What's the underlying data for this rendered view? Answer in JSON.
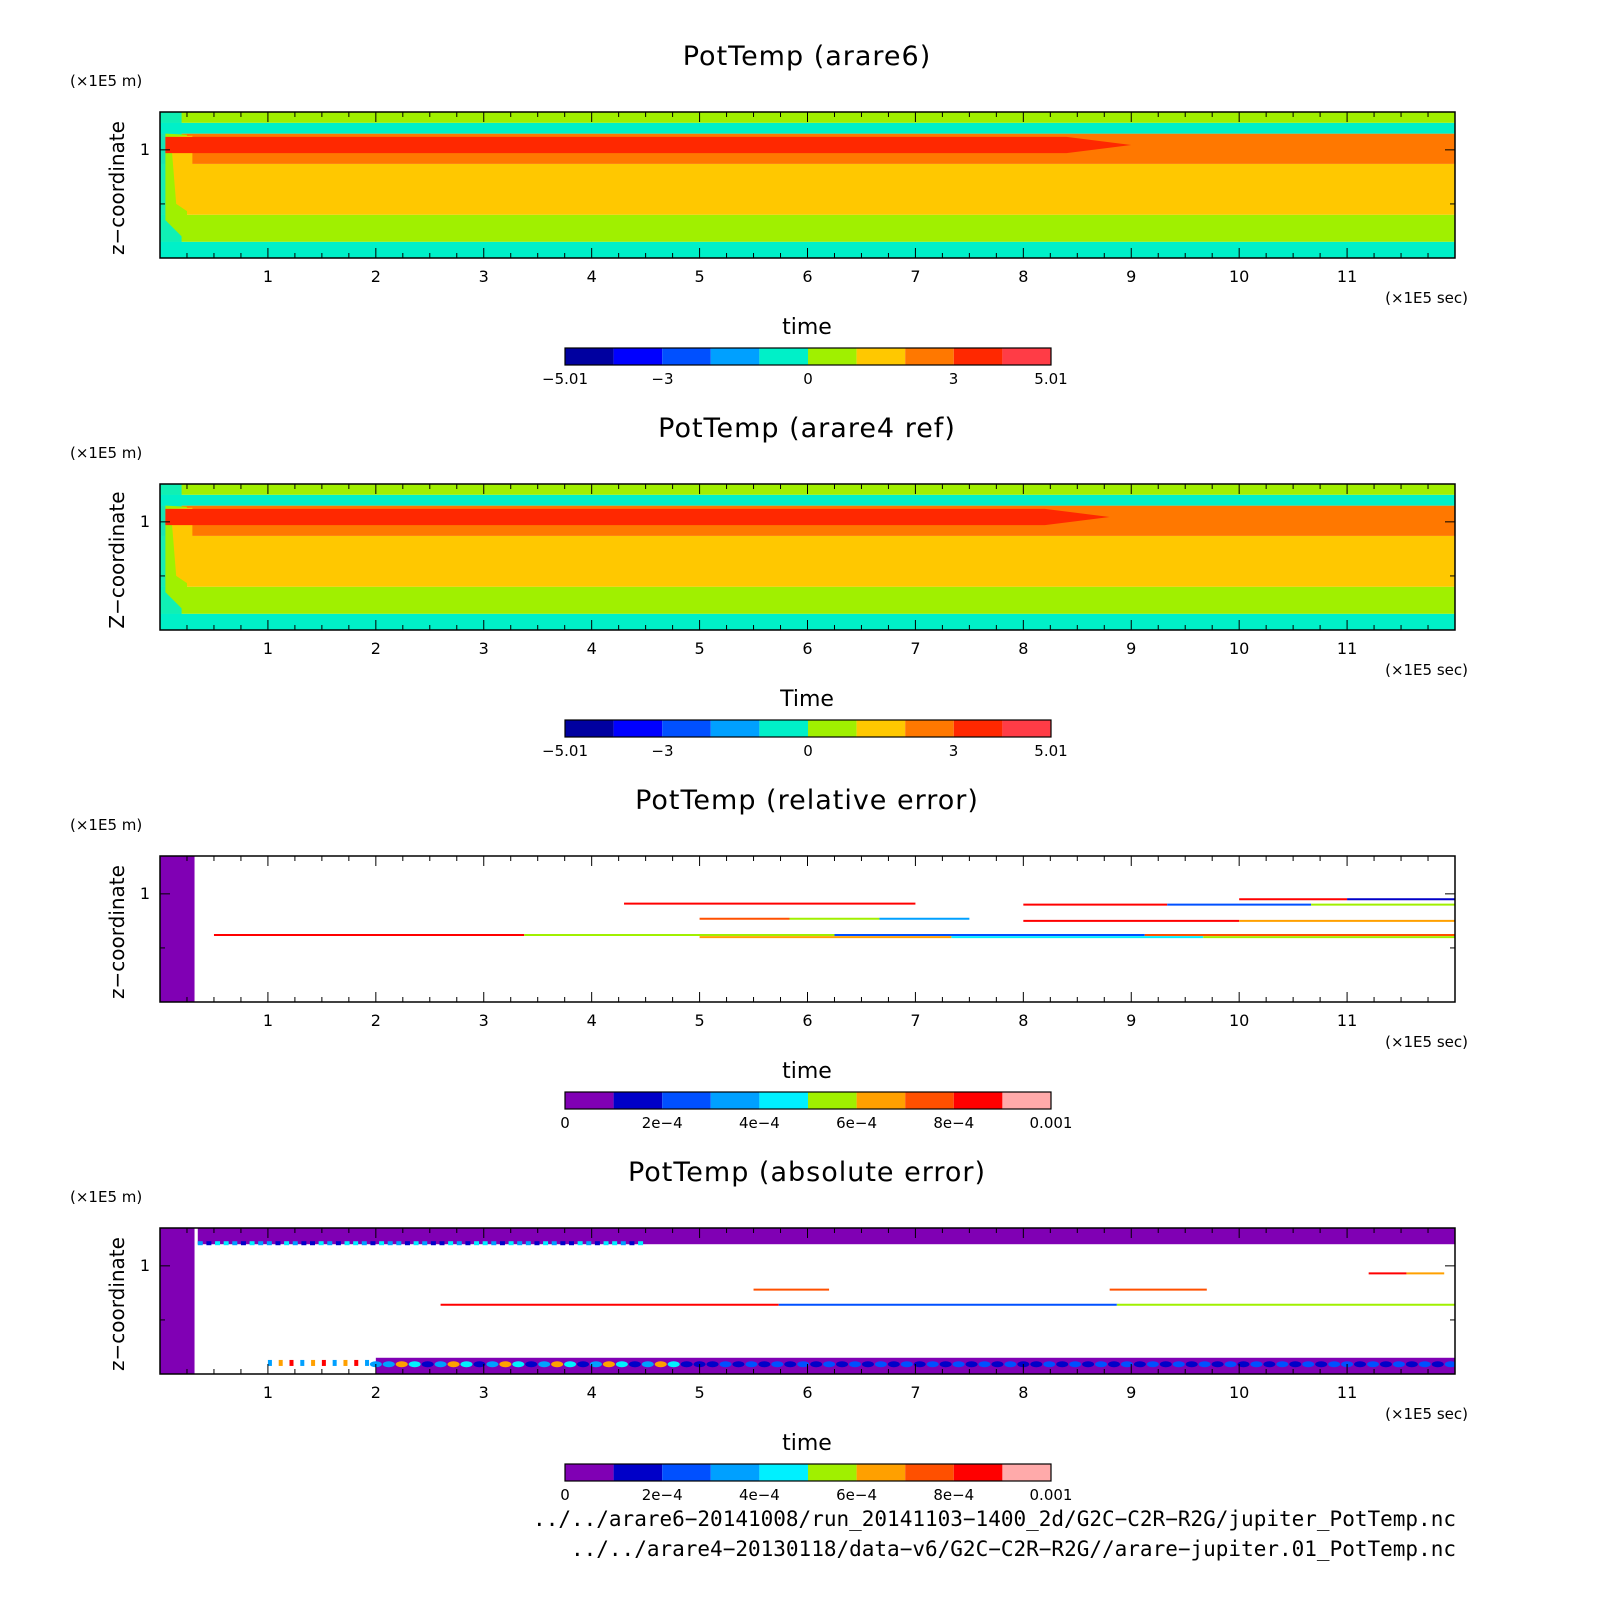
{
  "panels": [
    {
      "title": "PotTemp (arare6)",
      "y_unit": "(×1E5 m)",
      "ylabel": "z−coordinate",
      "xlabel": "time",
      "x_unit": "(×1E5 sec)",
      "colorbar_ticks": [
        "−5.01",
        "−3",
        "0",
        "3",
        "5.01"
      ]
    },
    {
      "title": "PotTemp (arare4 ref)",
      "y_unit": "(×1E5 m)",
      "ylabel": "Z−coordinate",
      "xlabel": "Time",
      "x_unit": "(×1E5 sec)",
      "colorbar_ticks": [
        "−5.01",
        "−3",
        "0",
        "3",
        "5.01"
      ]
    },
    {
      "title": "PotTemp (relative error)",
      "y_unit": "(×1E5 m)",
      "ylabel": "z−coordinate",
      "xlabel": "time",
      "x_unit": "(×1E5 sec)",
      "colorbar_ticks": [
        "0",
        "2e−4",
        "4e−4",
        "6e−4",
        "8e−4",
        "0.001"
      ]
    },
    {
      "title": "PotTemp (absolute error)",
      "y_unit": "(×1E5 m)",
      "ylabel": "z−coordinate",
      "xlabel": "time",
      "x_unit": "(×1E5 sec)",
      "colorbar_ticks": [
        "0",
        "2e−4",
        "4e−4",
        "6e−4",
        "8e−4",
        "0.001"
      ]
    }
  ],
  "footer": {
    "line1": "../../arare6−20141008/run_20141103−1400_2d/G2C−C2R−R2G/jupiter_PotTemp.nc",
    "line2": "../../arare4−20130118/data−v6/G2C−C2R−R2G//arare−jupiter.01_PotTemp.nc"
  },
  "chart_data": [
    {
      "type": "heatmap",
      "title": "PotTemp (arare6)",
      "xlabel": "time",
      "ylabel": "z−coordinate",
      "x_unit": "×1E5 sec",
      "y_unit": "×1E5 m",
      "xlim": [
        0,
        12
      ],
      "ylim": [
        0,
        1.35
      ],
      "x_ticks": [
        1,
        2,
        3,
        4,
        5,
        6,
        7,
        8,
        9,
        10,
        11
      ],
      "y_ticks": [
        1
      ],
      "colorbar": {
        "min": -5.01,
        "max": 5.01,
        "labels": [
          -5.01,
          -3,
          0,
          3,
          5.01
        ],
        "colors": [
          "#0000a0",
          "#0000ff",
          "#0050ff",
          "#00a0ff",
          "#00f0c8",
          "#a0f000",
          "#ffc800",
          "#ff7800",
          "#ff2800",
          "#ff3c46"
        ]
      },
      "bands": [
        {
          "z": [
            0.0,
            0.15
          ],
          "color": "#00f0c8"
        },
        {
          "z": [
            0.15,
            0.4
          ],
          "color": "#a0f000"
        },
        {
          "z": [
            0.4,
            0.87
          ],
          "color": "#ffc800"
        },
        {
          "z": [
            0.87,
            1.15
          ],
          "color": "#ff7800"
        },
        {
          "z": [
            1.15,
            1.25
          ],
          "color": "#00f0c8"
        },
        {
          "z": [
            1.25,
            1.35
          ],
          "color": "#a0f000"
        }
      ],
      "core": {
        "z": [
          0.97,
          1.12
        ],
        "x_end": 9.0,
        "color": "#ff2800"
      }
    },
    {
      "type": "heatmap",
      "title": "PotTemp (arare4 ref)",
      "xlabel": "Time",
      "ylabel": "Z−coordinate",
      "x_unit": "×1E5 sec",
      "y_unit": "×1E5 m",
      "xlim": [
        0,
        12
      ],
      "ylim": [
        0,
        1.35
      ],
      "x_ticks": [
        1,
        2,
        3,
        4,
        5,
        6,
        7,
        8,
        9,
        10,
        11
      ],
      "y_ticks": [
        1
      ],
      "colorbar": {
        "min": -5.01,
        "max": 5.01,
        "labels": [
          -5.01,
          -3,
          0,
          3,
          5.01
        ],
        "colors": [
          "#0000a0",
          "#0000ff",
          "#0050ff",
          "#00a0ff",
          "#00f0c8",
          "#a0f000",
          "#ffc800",
          "#ff7800",
          "#ff2800",
          "#ff3c46"
        ]
      },
      "bands": [
        {
          "z": [
            0.0,
            0.15
          ],
          "color": "#00f0c8"
        },
        {
          "z": [
            0.15,
            0.4
          ],
          "color": "#a0f000"
        },
        {
          "z": [
            0.4,
            0.87
          ],
          "color": "#ffc800"
        },
        {
          "z": [
            0.87,
            1.15
          ],
          "color": "#ff7800"
        },
        {
          "z": [
            1.15,
            1.25
          ],
          "color": "#00f0c8"
        },
        {
          "z": [
            1.25,
            1.35
          ],
          "color": "#a0f000"
        }
      ],
      "core": {
        "z": [
          0.97,
          1.12
        ],
        "x_end": 8.8,
        "color": "#ff2800"
      }
    },
    {
      "type": "heatmap",
      "title": "PotTemp (relative error)",
      "xlabel": "time",
      "ylabel": "z−coordinate",
      "x_unit": "×1E5 sec",
      "y_unit": "×1E5 m",
      "xlim": [
        0,
        12
      ],
      "ylim": [
        0,
        1.35
      ],
      "x_ticks": [
        1,
        2,
        3,
        4,
        5,
        6,
        7,
        8,
        9,
        10,
        11
      ],
      "y_ticks": [
        1
      ],
      "colorbar": {
        "min": 0,
        "max": 0.001,
        "labels": [
          0,
          0.0002,
          0.0004,
          0.0006,
          0.0008,
          0.001
        ],
        "colors": [
          "#8000b4",
          "#0000c8",
          "#0050ff",
          "#00a0ff",
          "#00f0ff",
          "#a0f000",
          "#ffa000",
          "#ff5000",
          "#ff0000",
          "#ffaaaa"
        ]
      },
      "left_block": {
        "x": [
          0,
          0.32
        ],
        "color": "#8000b4"
      },
      "streaks": [
        {
          "x": [
            0.5,
            12.0
          ],
          "z": 0.62,
          "colors": [
            "#ff0000",
            "#a0f000",
            "#0050ff",
            "#ff5000"
          ]
        },
        {
          "x": [
            5.0,
            12.0
          ],
          "z": 0.6,
          "colors": [
            "#ffa000",
            "#00f0ff",
            "#a0f000"
          ]
        },
        {
          "x": [
            5.0,
            7.5
          ],
          "z": 0.77,
          "colors": [
            "#ff5000",
            "#a0f000",
            "#00a0ff"
          ]
        },
        {
          "x": [
            8.0,
            12.0
          ],
          "z": 0.75,
          "colors": [
            "#ff0000",
            "#ffa000"
          ]
        },
        {
          "x": [
            4.3,
            7.0
          ],
          "z": 0.91,
          "colors": [
            "#ff0000"
          ]
        },
        {
          "x": [
            8.0,
            12.0
          ],
          "z": 0.9,
          "colors": [
            "#ff0000",
            "#0050ff",
            "#a0f000"
          ]
        },
        {
          "x": [
            10.0,
            12.0
          ],
          "z": 0.95,
          "colors": [
            "#ff0000",
            "#0000c8"
          ]
        }
      ]
    },
    {
      "type": "heatmap",
      "title": "PotTemp (absolute error)",
      "xlabel": "time",
      "ylabel": "z−coordinate",
      "x_unit": "×1E5 sec",
      "y_unit": "×1E5 m",
      "xlim": [
        0,
        12
      ],
      "ylim": [
        0,
        1.35
      ],
      "x_ticks": [
        1,
        2,
        3,
        4,
        5,
        6,
        7,
        8,
        9,
        10,
        11
      ],
      "y_ticks": [
        1
      ],
      "colorbar": {
        "min": 0,
        "max": 0.001,
        "labels": [
          0,
          0.0002,
          0.0004,
          0.0006,
          0.0008,
          0.001
        ],
        "colors": [
          "#8000b4",
          "#0000c8",
          "#0050ff",
          "#00a0ff",
          "#00f0ff",
          "#a0f000",
          "#ffa000",
          "#ff5000",
          "#ff0000",
          "#ffaaaa"
        ]
      },
      "left_block": {
        "x": [
          0,
          0.32
        ],
        "color": "#8000b4"
      },
      "top_band": {
        "z": [
          1.2,
          1.35
        ],
        "x": [
          0.35,
          12.0
        ],
        "color": "#8000b4"
      },
      "bottom_band": {
        "z": [
          0.0,
          0.15
        ],
        "x": [
          2.0,
          12.0
        ],
        "color": "#8000b4"
      },
      "streaks": [
        {
          "x": [
            2.6,
            12.0
          ],
          "z": 0.64,
          "colors": [
            "#ff0000",
            "#0050ff",
            "#a0f000"
          ]
        },
        {
          "x": [
            5.5,
            6.2
          ],
          "z": 0.78,
          "colors": [
            "#ff5000"
          ]
        },
        {
          "x": [
            8.8,
            9.7
          ],
          "z": 0.78,
          "colors": [
            "#ff5000"
          ]
        },
        {
          "x": [
            11.2,
            11.9
          ],
          "z": 0.93,
          "colors": [
            "#ff0000",
            "#ffa000"
          ]
        }
      ]
    }
  ]
}
